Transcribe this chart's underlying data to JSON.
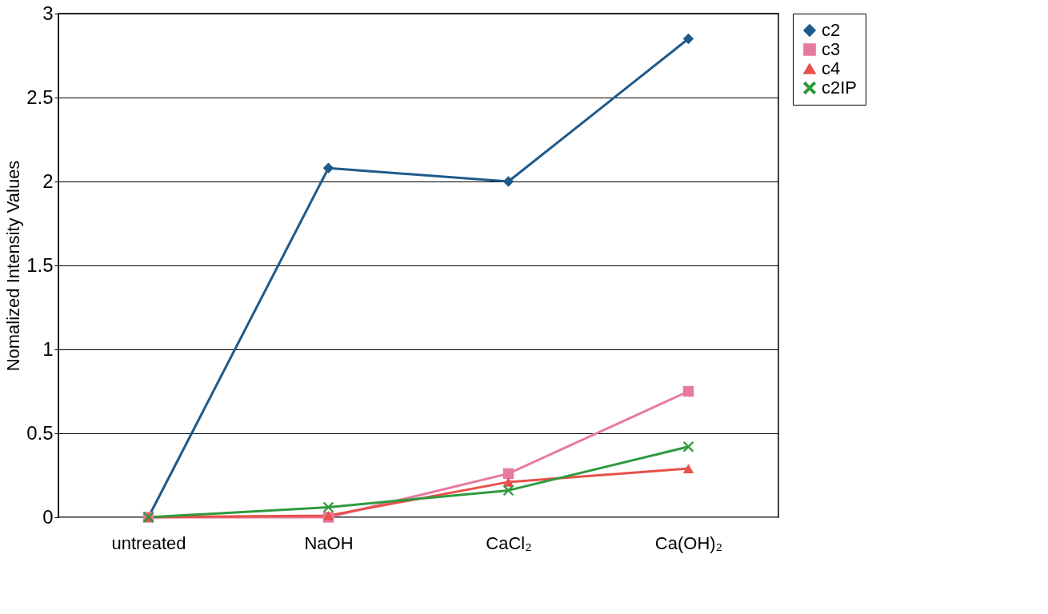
{
  "chart_data": {
    "type": "line",
    "ylabel": "Nomalized Intensity Values",
    "categories": [
      "untreated",
      "NaOH",
      "CaCl₂",
      "Ca(OH)₂"
    ],
    "ylim": [
      0,
      3
    ],
    "yticks": [
      0,
      0.5,
      1,
      1.5,
      2,
      2.5,
      3
    ],
    "grid": "y",
    "legend": "right",
    "line_style": "solid",
    "series": [
      {
        "name": "c2",
        "color": "#1f5a8c",
        "marker": "diamond",
        "values": [
          0,
          2.08,
          2.0,
          2.85
        ]
      },
      {
        "name": "c3",
        "color": "#e87a9f",
        "marker": "square",
        "values": [
          0,
          0.0,
          0.26,
          0.75
        ]
      },
      {
        "name": "c4",
        "color": "#e8504a",
        "marker": "triangle",
        "values": [
          0,
          0.01,
          0.21,
          0.29
        ]
      },
      {
        "name": "c2IP",
        "color": "#2e9a3e",
        "marker": "cross",
        "values": [
          0,
          0.06,
          0.16,
          0.42
        ]
      }
    ]
  }
}
